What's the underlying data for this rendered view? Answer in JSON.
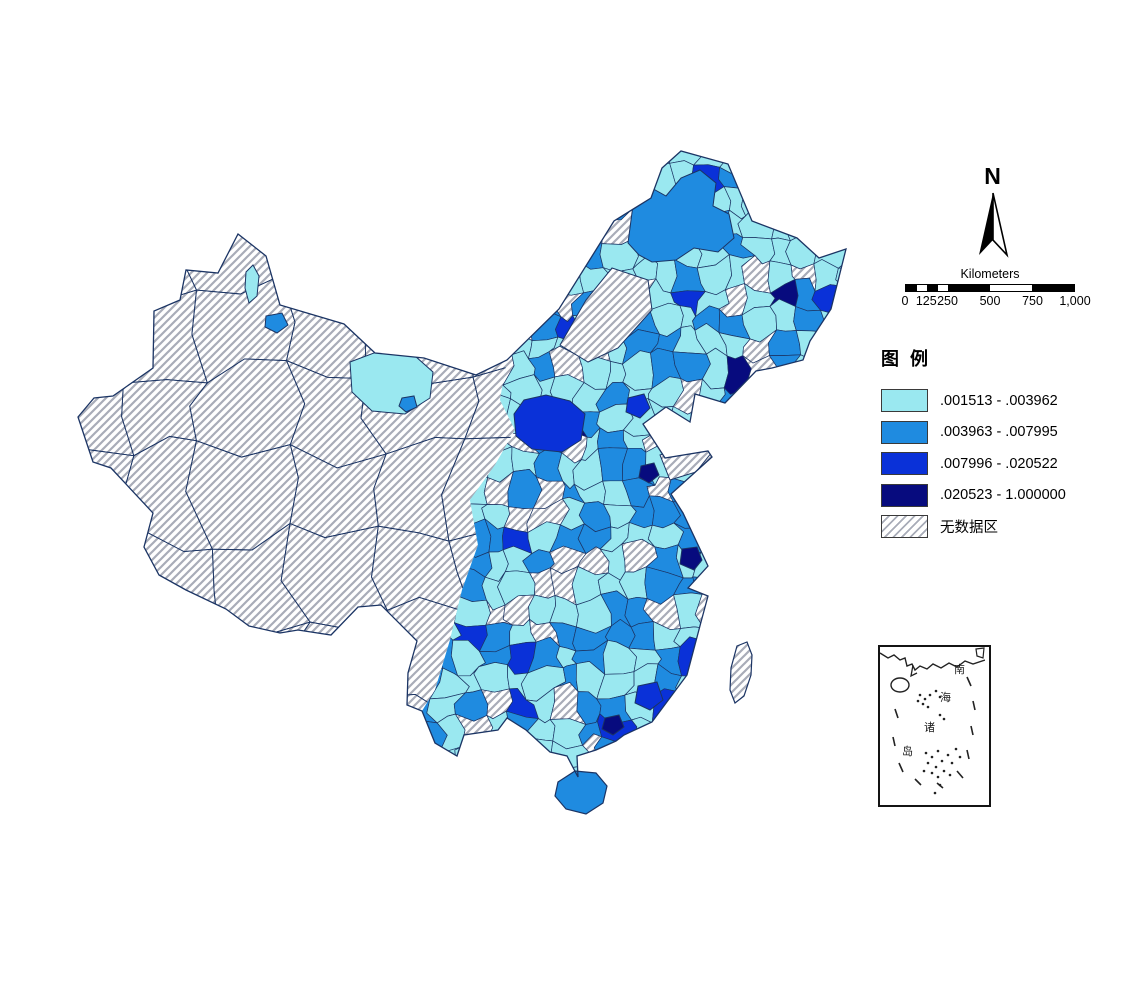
{
  "north_arrow": {
    "label": "N"
  },
  "scale_bar": {
    "title": "Kilometers",
    "ticks": [
      "0",
      "125",
      "250",
      "500",
      "750",
      "1,000"
    ],
    "tick_km": [
      0,
      125,
      250,
      500,
      750,
      1000
    ]
  },
  "legend": {
    "title": "图 例",
    "classes": [
      {
        "label": ".001513 - .003962",
        "color": "#9AE8F0",
        "pattern": "solid"
      },
      {
        "label": ".003963 - .007995",
        "color": "#1F8BE0",
        "pattern": "solid"
      },
      {
        "label": ".007996 - .020522",
        "color": "#0A31D8",
        "pattern": "solid"
      },
      {
        "label": ".020523 - 1.000000",
        "color": "#070B7E",
        "pattern": "solid"
      },
      {
        "label": "无数据区",
        "color": "#A8ACB8",
        "pattern": "hatch"
      }
    ]
  },
  "inset": {
    "name": "南海诸岛",
    "labels": [
      "南",
      "海",
      "诸",
      "岛"
    ]
  },
  "colors": {
    "border": "#1B3464",
    "hatch_line": "#A8ACB8",
    "background": "#FFFFFF",
    "sea": "#FFFFFF",
    "text": "#000000"
  }
}
